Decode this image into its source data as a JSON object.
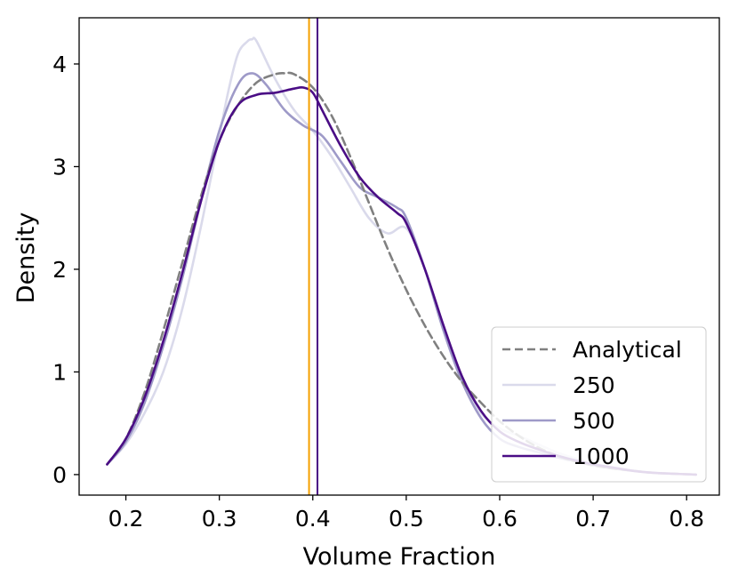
{
  "chart_data": {
    "type": "line",
    "title": "",
    "xlabel": "Volume Fraction",
    "ylabel": "Density",
    "xlim": [
      0.15,
      0.835
    ],
    "ylim": [
      -0.2,
      4.45
    ],
    "xticks": [
      0.2,
      0.3,
      0.4,
      0.5,
      0.6,
      0.7,
      0.8
    ],
    "xtick_labels": [
      "0.2",
      "0.3",
      "0.4",
      "0.5",
      "0.6",
      "0.7",
      "0.8"
    ],
    "yticks": [
      0,
      1,
      2,
      3,
      4
    ],
    "ytick_labels": [
      "0",
      "1",
      "2",
      "3",
      "4"
    ],
    "grid": false,
    "legend_position": "lower-right",
    "series": [
      {
        "name": "Analytical",
        "color": "#808080",
        "dashed": true,
        "x": [
          0.18,
          0.2,
          0.22,
          0.24,
          0.26,
          0.28,
          0.3,
          0.32,
          0.34,
          0.36,
          0.37,
          0.38,
          0.4,
          0.42,
          0.44,
          0.46,
          0.48,
          0.5,
          0.52,
          0.54,
          0.56,
          0.58,
          0.6,
          0.62,
          0.64,
          0.66,
          0.68,
          0.7,
          0.72,
          0.74,
          0.76,
          0.78,
          0.81
        ],
        "y": [
          0.1,
          0.35,
          0.8,
          1.4,
          2.05,
          2.7,
          3.25,
          3.6,
          3.82,
          3.9,
          3.91,
          3.9,
          3.77,
          3.5,
          3.1,
          2.65,
          2.2,
          1.8,
          1.45,
          1.15,
          0.9,
          0.7,
          0.52,
          0.38,
          0.27,
          0.19,
          0.13,
          0.09,
          0.06,
          0.04,
          0.02,
          0.01,
          0.0
        ]
      },
      {
        "name": "250",
        "color": "#dadaeb",
        "dashed": false,
        "x": [
          0.18,
          0.2,
          0.22,
          0.24,
          0.26,
          0.28,
          0.3,
          0.31,
          0.32,
          0.33,
          0.335,
          0.34,
          0.36,
          0.38,
          0.4,
          0.42,
          0.44,
          0.46,
          0.48,
          0.5,
          0.52,
          0.54,
          0.56,
          0.58,
          0.6,
          0.62,
          0.64,
          0.66,
          0.68,
          0.7,
          0.72,
          0.74,
          0.76,
          0.78,
          0.81
        ],
        "y": [
          0.1,
          0.3,
          0.6,
          1.0,
          1.6,
          2.4,
          3.3,
          3.75,
          4.1,
          4.22,
          4.24,
          4.22,
          3.85,
          3.55,
          3.35,
          3.1,
          2.8,
          2.5,
          2.35,
          2.4,
          2.0,
          1.4,
          0.9,
          0.6,
          0.45,
          0.38,
          0.3,
          0.22,
          0.16,
          0.11,
          0.07,
          0.04,
          0.02,
          0.01,
          0.0
        ]
      },
      {
        "name": "500",
        "color": "#9e9ac8",
        "dashed": false,
        "x": [
          0.18,
          0.2,
          0.22,
          0.24,
          0.26,
          0.28,
          0.3,
          0.32,
          0.335,
          0.35,
          0.37,
          0.39,
          0.41,
          0.43,
          0.45,
          0.47,
          0.49,
          0.5,
          0.52,
          0.54,
          0.56,
          0.58,
          0.6,
          0.62,
          0.64,
          0.66,
          0.68,
          0.7,
          0.72,
          0.74,
          0.76,
          0.78,
          0.81
        ],
        "y": [
          0.1,
          0.32,
          0.7,
          1.25,
          1.9,
          2.65,
          3.35,
          3.8,
          3.91,
          3.8,
          3.55,
          3.4,
          3.3,
          3.05,
          2.8,
          2.7,
          2.6,
          2.5,
          2.0,
          1.4,
          0.9,
          0.55,
          0.35,
          0.27,
          0.22,
          0.17,
          0.13,
          0.09,
          0.06,
          0.04,
          0.02,
          0.01,
          0.0
        ]
      },
      {
        "name": "1000",
        "color": "#4a0d85",
        "dashed": false,
        "x": [
          0.18,
          0.2,
          0.22,
          0.24,
          0.26,
          0.28,
          0.3,
          0.32,
          0.34,
          0.36,
          0.38,
          0.39,
          0.4,
          0.41,
          0.43,
          0.45,
          0.47,
          0.49,
          0.5,
          0.52,
          0.54,
          0.56,
          0.58,
          0.6,
          0.62,
          0.64,
          0.66,
          0.68,
          0.7,
          0.72,
          0.74,
          0.76,
          0.78,
          0.81
        ],
        "y": [
          0.1,
          0.35,
          0.75,
          1.3,
          1.95,
          2.65,
          3.25,
          3.6,
          3.7,
          3.72,
          3.76,
          3.77,
          3.72,
          3.55,
          3.2,
          2.9,
          2.7,
          2.55,
          2.45,
          2.0,
          1.45,
          0.95,
          0.62,
          0.42,
          0.32,
          0.25,
          0.19,
          0.14,
          0.1,
          0.07,
          0.04,
          0.02,
          0.01,
          0.0
        ]
      }
    ],
    "vlines": [
      {
        "x": 0.396,
        "color": "#f5a000"
      },
      {
        "x": 0.405,
        "color": "#4a0d85"
      }
    ]
  }
}
